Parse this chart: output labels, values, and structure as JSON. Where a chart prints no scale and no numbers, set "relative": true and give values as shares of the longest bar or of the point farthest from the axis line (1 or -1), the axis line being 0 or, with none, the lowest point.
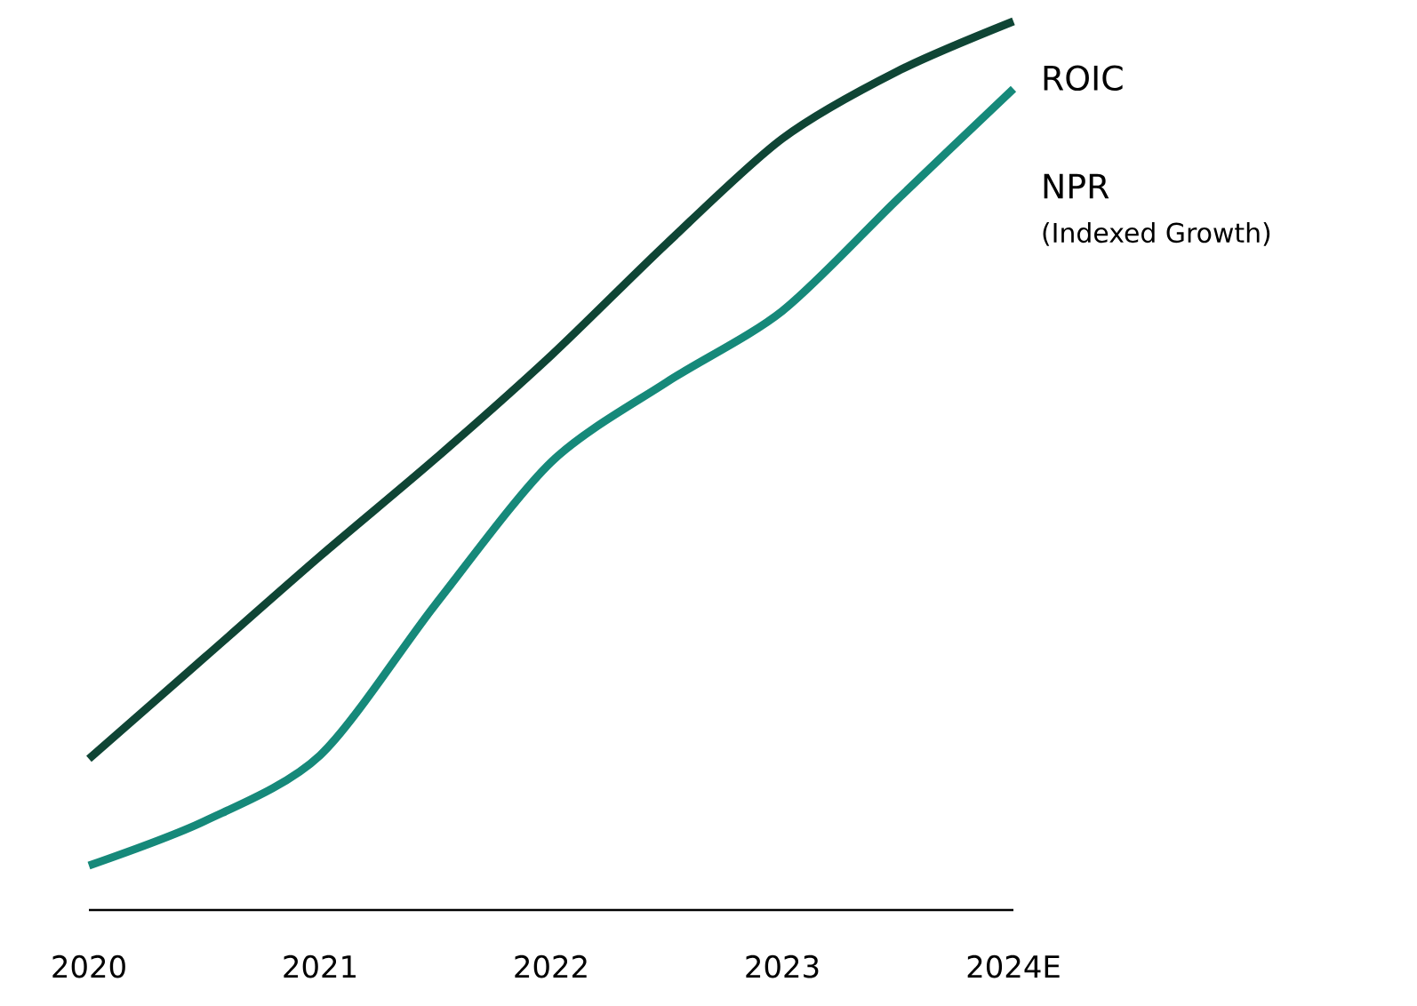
{
  "chart_data": {
    "type": "line",
    "relative": true,
    "x": [
      2020,
      2020.5,
      2021,
      2021.5,
      2022,
      2022.5,
      2023,
      2023.5,
      2024
    ],
    "xlim": [
      2020,
      2024
    ],
    "xticks": [
      2020,
      2021,
      2022,
      2023,
      {
        "value": 2024,
        "label": "2024E"
      }
    ],
    "series": [
      {
        "name": "ROIC",
        "color": "#0f4535",
        "values": [
          0.17,
          0.284,
          0.398,
          0.508,
          0.624,
          0.75,
          0.868,
          0.944,
          1.0
        ]
      },
      {
        "name": "NPR",
        "color": "#16897a",
        "values": [
          0.05,
          0.1,
          0.174,
          0.344,
          0.504,
          0.594,
          0.674,
          0.8,
          0.924
        ]
      }
    ],
    "annotations": [
      "(Indexed Growth)"
    ]
  }
}
